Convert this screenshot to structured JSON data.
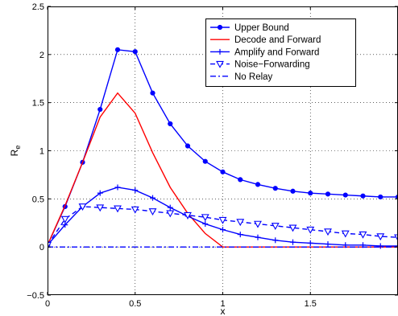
{
  "chart_data": {
    "type": "line",
    "title": "",
    "xlabel": "x",
    "ylabel": "R",
    "ylabel_subscript": "e",
    "xlim": [
      0,
      2
    ],
    "ylim": [
      -0.5,
      2.5
    ],
    "grid": true,
    "legend_position": "top-right",
    "x_ticks": [
      0,
      0.5,
      1,
      1.5
    ],
    "x_tick_labels": [
      "0",
      "0.5",
      "1",
      "1.5"
    ],
    "y_ticks": [
      -0.5,
      0,
      0.5,
      1,
      1.5,
      2,
      2.5
    ],
    "y_tick_labels": [
      "−0.5",
      "0",
      "0.5",
      "1",
      "1.5",
      "2",
      "2.5"
    ],
    "series": [
      {
        "name": "Upper Bound",
        "color": "#0000ff",
        "line": "solid",
        "marker": "dot",
        "x": [
          0,
          0.1,
          0.2,
          0.3,
          0.4,
          0.5,
          0.6,
          0.7,
          0.8,
          0.9,
          1.0,
          1.1,
          1.2,
          1.3,
          1.4,
          1.5,
          1.6,
          1.7,
          1.8,
          1.9,
          2.0
        ],
        "y": [
          0.02,
          0.42,
          0.88,
          1.43,
          2.05,
          2.03,
          1.6,
          1.28,
          1.05,
          0.89,
          0.78,
          0.7,
          0.65,
          0.61,
          0.58,
          0.56,
          0.55,
          0.54,
          0.53,
          0.52,
          0.52
        ]
      },
      {
        "name": "Decode and Forward",
        "color": "#ff0000",
        "line": "solid",
        "marker": "none",
        "x": [
          0,
          0.1,
          0.2,
          0.3,
          0.4,
          0.5,
          0.6,
          0.7,
          0.8,
          0.9,
          1.0,
          1.1,
          1.2,
          1.3,
          1.4,
          1.5,
          1.6,
          1.7,
          1.8,
          1.9,
          2.0
        ],
        "y": [
          0.02,
          0.43,
          0.88,
          1.35,
          1.6,
          1.39,
          0.98,
          0.62,
          0.35,
          0.14,
          0.0,
          0.0,
          0.0,
          0.0,
          0.0,
          0.0,
          0.0,
          0.0,
          0.0,
          0.0,
          0.0
        ]
      },
      {
        "name": "Amplify and Forward",
        "color": "#0000ff",
        "line": "solid",
        "marker": "plus",
        "x": [
          0,
          0.1,
          0.2,
          0.3,
          0.4,
          0.5,
          0.6,
          0.7,
          0.8,
          0.9,
          1.0,
          1.1,
          1.2,
          1.3,
          1.4,
          1.5,
          1.6,
          1.7,
          1.8,
          1.9,
          2.0
        ],
        "y": [
          0.02,
          0.23,
          0.42,
          0.56,
          0.62,
          0.59,
          0.51,
          0.41,
          0.32,
          0.24,
          0.18,
          0.13,
          0.1,
          0.07,
          0.05,
          0.04,
          0.03,
          0.02,
          0.02,
          0.01,
          0.01
        ]
      },
      {
        "name": "Noise−Forwarding",
        "color": "#0000ff",
        "line": "dashed",
        "marker": "triangle-down",
        "x": [
          0,
          0.1,
          0.2,
          0.3,
          0.4,
          0.5,
          0.6,
          0.7,
          0.8,
          0.9,
          1.0,
          1.1,
          1.2,
          1.3,
          1.4,
          1.5,
          1.6,
          1.7,
          1.8,
          1.9,
          2.0
        ],
        "y": [
          0.02,
          0.29,
          0.42,
          0.41,
          0.4,
          0.39,
          0.37,
          0.35,
          0.33,
          0.31,
          0.28,
          0.26,
          0.24,
          0.22,
          0.2,
          0.18,
          0.16,
          0.14,
          0.13,
          0.11,
          0.1
        ]
      },
      {
        "name": "No Relay",
        "color": "#0000ff",
        "line": "dashdot",
        "marker": "none",
        "x": [
          0,
          2.0
        ],
        "y": [
          0,
          0
        ]
      }
    ]
  }
}
